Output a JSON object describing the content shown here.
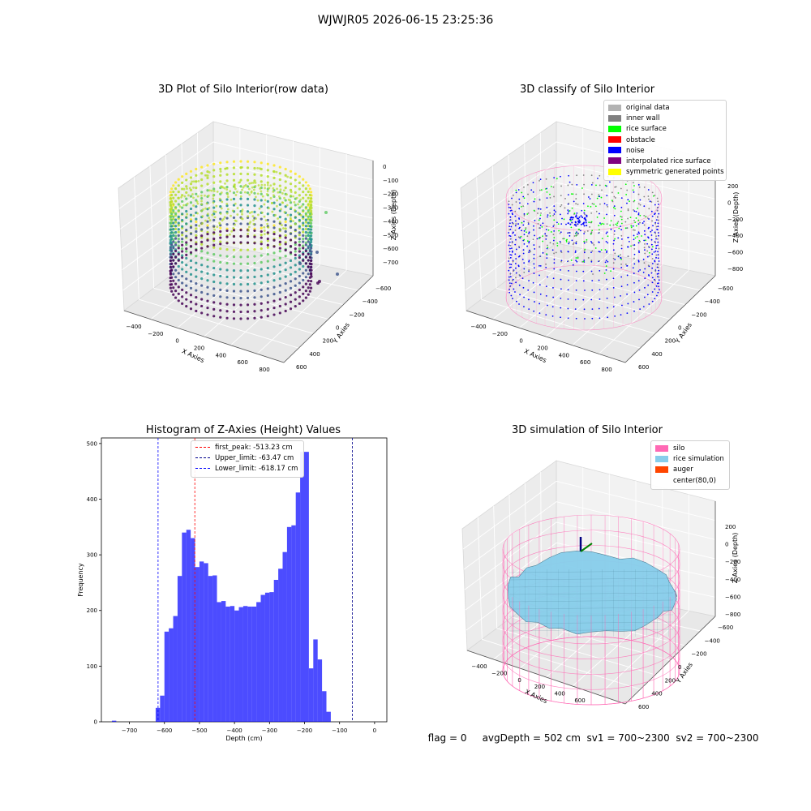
{
  "suptitle": "WJWJR05 2026-06-15 23:25:36",
  "footer": {
    "flag": "flag = 0",
    "avg_depth": "avgDepth = 502 cm",
    "sv1": "sv1 = 700~2300",
    "sv2": "sv2 = 700~2300"
  },
  "panels": {
    "raw": {
      "title": "3D Plot of Silo Interior(row data)",
      "xlabel": "X Axies",
      "ylabel": "Y Axies",
      "zlabel": "Z Axies (Depth)",
      "xticks": [
        "−400",
        "−200",
        "0",
        "200",
        "400",
        "600",
        "800"
      ],
      "yticks": [
        "600",
        "400",
        "200",
        "0",
        "−200",
        "−400",
        "−600"
      ],
      "zticks": [
        "0",
        "−100",
        "−200",
        "−300",
        "−400",
        "−500",
        "−600",
        "−700"
      ]
    },
    "classify": {
      "title": "3D classify of Silo Interior",
      "xlabel": "X Axies",
      "ylabel": "Y Axies",
      "zlabel": "Z Axies (Depth)",
      "xticks": [
        "−400",
        "−200",
        "0",
        "200",
        "400",
        "600",
        "800"
      ],
      "yticks": [
        "600",
        "400",
        "200",
        "0",
        "−200",
        "−400",
        "−600"
      ],
      "zticks": [
        "200",
        "0",
        "−200",
        "−400",
        "−600",
        "−800"
      ],
      "legend": [
        {
          "label": "original data",
          "color": "#b3b3b3"
        },
        {
          "label": "inner wall",
          "color": "#808080"
        },
        {
          "label": "rice surface",
          "color": "#00ff00"
        },
        {
          "label": "obstacle",
          "color": "#ff0000"
        },
        {
          "label": "noise",
          "color": "#0000ff"
        },
        {
          "label": "interpolated rice surface",
          "color": "#800080"
        },
        {
          "label": "symmetric generated points",
          "color": "#ffff00"
        }
      ]
    },
    "simulation": {
      "title": "3D simulation of Silo Interior",
      "xlabel": "X Axies",
      "ylabel": "Y Axies",
      "zlabel": "Z Axies (Depth)",
      "xticks": [
        "−400",
        "−200",
        "0",
        "200",
        "400",
        "600"
      ],
      "yticks": [
        "600",
        "400",
        "200",
        "0",
        "−200",
        "−400",
        "−600"
      ],
      "zticks": [
        "200",
        "0",
        "−200",
        "−400",
        "−600",
        "−800"
      ],
      "legend": [
        {
          "label": "silo",
          "color": "#ff69b4"
        },
        {
          "label": "rice simulation",
          "color": "#87ceeb"
        },
        {
          "label": "auger",
          "color": "#ff4500"
        },
        {
          "label": "center(80,0)",
          "color": "#ffffff"
        }
      ]
    }
  },
  "chart_data": [
    {
      "type": "bar",
      "title": "Histogram of Z-Axies (Height) Values",
      "xlabel": "Depth (cm)",
      "ylabel": "Frequency",
      "xlim": [
        -780,
        35
      ],
      "ylim": [
        0,
        510
      ],
      "xticks": [
        -700,
        -600,
        -500,
        -400,
        -300,
        -200,
        -100,
        0
      ],
      "yticks": [
        0,
        100,
        200,
        300,
        400,
        500
      ],
      "bar_color": "#0000ff",
      "bin_width": 12.5,
      "bins": [
        {
          "x": -750,
          "value": 2
        },
        {
          "x": -625,
          "value": 25
        },
        {
          "x": -612.5,
          "value": 47
        },
        {
          "x": -600,
          "value": 162
        },
        {
          "x": -587.5,
          "value": 168
        },
        {
          "x": -575,
          "value": 190
        },
        {
          "x": -562.5,
          "value": 262
        },
        {
          "x": -550,
          "value": 340
        },
        {
          "x": -537.5,
          "value": 345
        },
        {
          "x": -525,
          "value": 330
        },
        {
          "x": -512.5,
          "value": 278
        },
        {
          "x": -500,
          "value": 288
        },
        {
          "x": -487.5,
          "value": 285
        },
        {
          "x": -475,
          "value": 262
        },
        {
          "x": -462.5,
          "value": 263
        },
        {
          "x": -450,
          "value": 215
        },
        {
          "x": -437.5,
          "value": 217
        },
        {
          "x": -425,
          "value": 207
        },
        {
          "x": -412.5,
          "value": 208
        },
        {
          "x": -400,
          "value": 200
        },
        {
          "x": -387.5,
          "value": 206
        },
        {
          "x": -375,
          "value": 208
        },
        {
          "x": -362.5,
          "value": 207
        },
        {
          "x": -350,
          "value": 207
        },
        {
          "x": -337.5,
          "value": 215
        },
        {
          "x": -325,
          "value": 228
        },
        {
          "x": -312.5,
          "value": 232
        },
        {
          "x": -300,
          "value": 233
        },
        {
          "x": -287.5,
          "value": 255
        },
        {
          "x": -275,
          "value": 275
        },
        {
          "x": -262.5,
          "value": 305
        },
        {
          "x": -250,
          "value": 350
        },
        {
          "x": -237.5,
          "value": 353
        },
        {
          "x": -225,
          "value": 412
        },
        {
          "x": -212.5,
          "value": 485
        },
        {
          "x": -200,
          "value": 485
        },
        {
          "x": -187.5,
          "value": 96
        },
        {
          "x": -175,
          "value": 148
        },
        {
          "x": -162.5,
          "value": 112
        },
        {
          "x": -150,
          "value": 55
        },
        {
          "x": -137.5,
          "value": 18
        }
      ],
      "lines": [
        {
          "label": "first_peak: -513.23 cm",
          "x": -513.23,
          "color": "#ff0000"
        },
        {
          "label": "Upper_limit: -63.47 cm",
          "x": -63.47,
          "color": "#00008b"
        },
        {
          "label": "Lower_limit: -618.17 cm",
          "x": -618.17,
          "color": "#0000ff"
        }
      ],
      "legend_position": "top-center"
    }
  ]
}
